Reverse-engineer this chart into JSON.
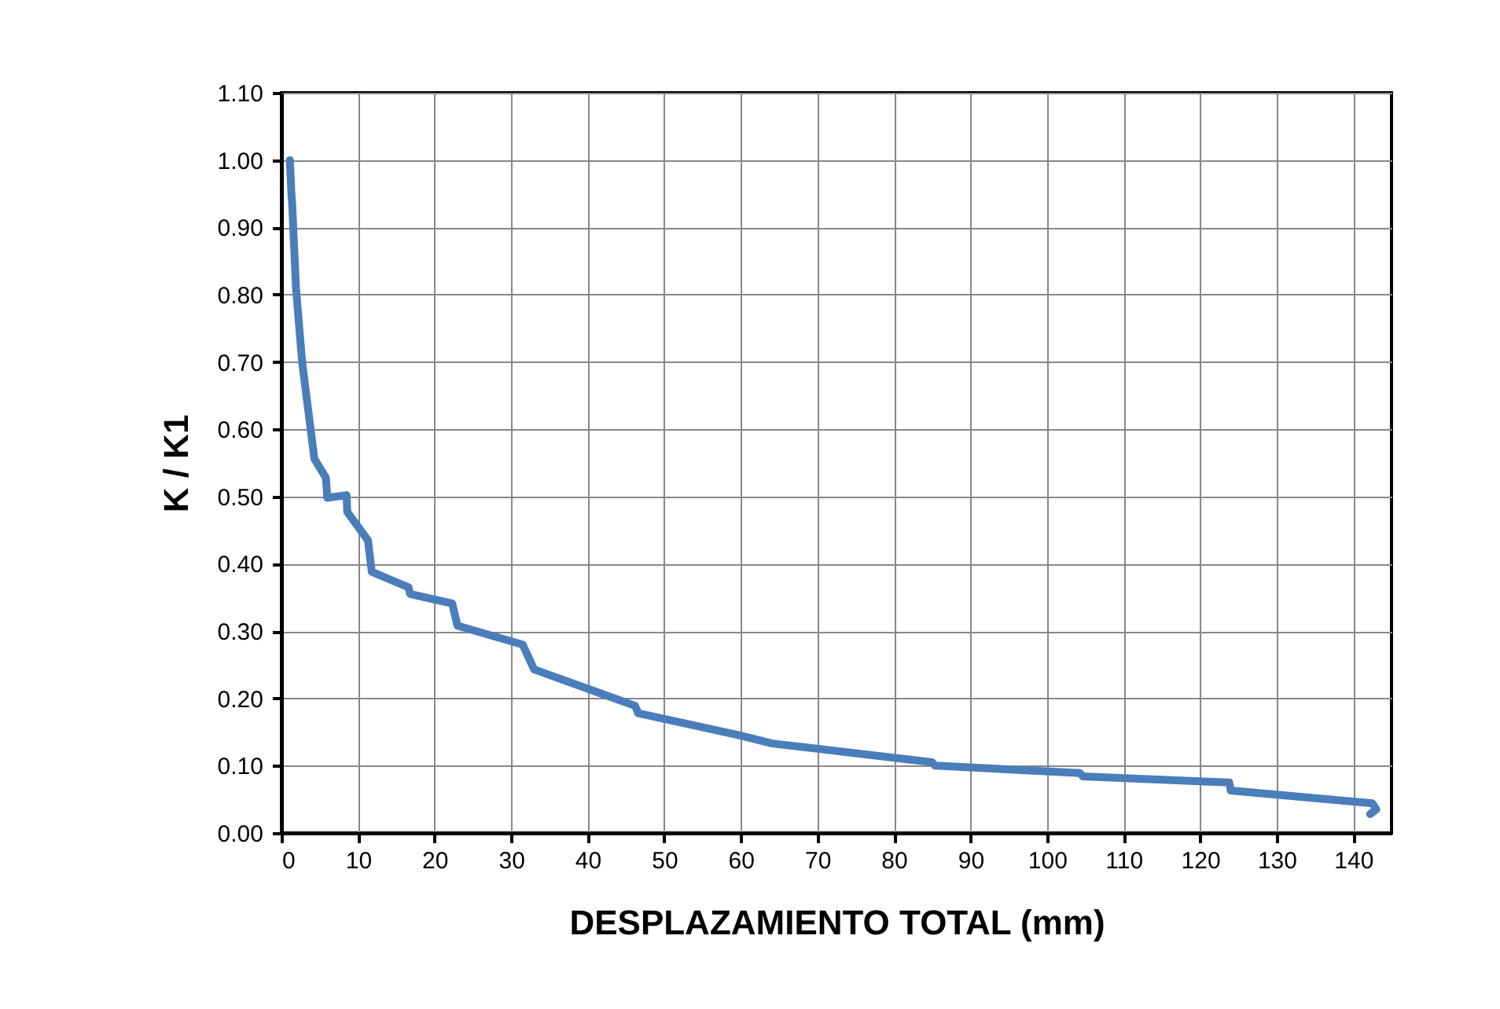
{
  "chart_data": {
    "type": "line",
    "xlabel": "DESPLAZAMIENTO TOTAL (mm)",
    "ylabel": "K / K1",
    "x": [
      1.1,
      1.3,
      1.4,
      1.9,
      2.7,
      4.3,
      5.8,
      6.0,
      8.5,
      8.6,
      11.3,
      11.8,
      16.6,
      16.8,
      22.3,
      23.0,
      31.5,
      33.0,
      46.2,
      46.6,
      59.9,
      64.1,
      85.0,
      85.4,
      104.3,
      104.7,
      123.8,
      124.0,
      142.5,
      143.0,
      142.2
    ],
    "series": [
      {
        "color": "#4a7ebb",
        "values": [
          1.0,
          0.95,
          0.935,
          0.81,
          0.7,
          0.556,
          0.528,
          0.498,
          0.502,
          0.477,
          0.435,
          0.388,
          0.365,
          0.355,
          0.341,
          0.308,
          0.28,
          0.243,
          0.189,
          0.178,
          0.145,
          0.133,
          0.105,
          0.1,
          0.089,
          0.084,
          0.075,
          0.063,
          0.044,
          0.035,
          0.028
        ]
      }
    ],
    "xlim": [
      0,
      145
    ],
    "xticks": [
      0,
      10,
      20,
      30,
      40,
      50,
      60,
      70,
      80,
      90,
      100,
      110,
      120,
      130,
      140
    ],
    "ylim": [
      0,
      1.1
    ],
    "yticks": [
      {
        "value": 0,
        "label": "0.00"
      },
      {
        "value": 0.1,
        "label": "0.10"
      },
      {
        "value": 0.2,
        "label": "0.20"
      },
      {
        "value": 0.3,
        "label": "0.30"
      },
      {
        "value": 0.4,
        "label": "0.40"
      },
      {
        "value": 0.5,
        "label": "0.50"
      },
      {
        "value": 0.6,
        "label": "0.60"
      },
      {
        "value": 0.7,
        "label": "0.70"
      },
      {
        "value": 0.8,
        "label": "0.80"
      },
      {
        "value": 0.9,
        "label": "0.90"
      },
      {
        "value": 1.0,
        "label": "1.00"
      },
      {
        "value": 1.1,
        "label": "1.10"
      }
    ],
    "grid": true,
    "marker": "none",
    "line_style": "solid"
  }
}
